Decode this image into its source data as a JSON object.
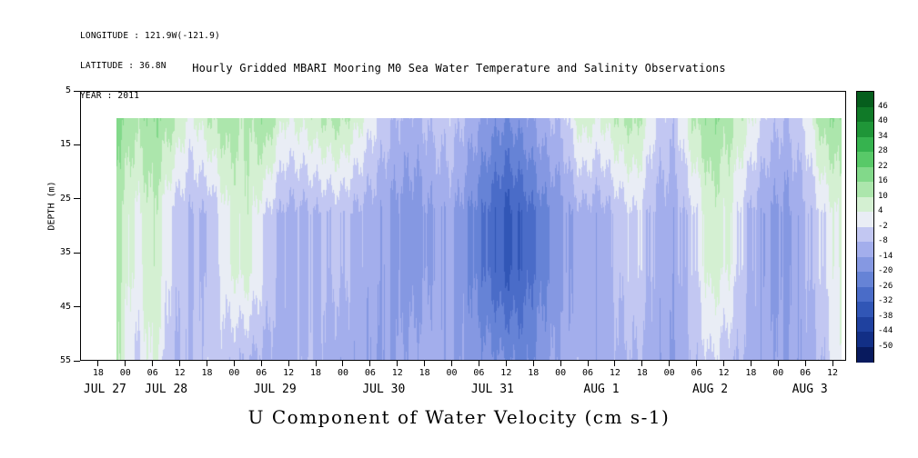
{
  "header": {
    "longitude": "LONGITUDE : 121.9W(-121.9)",
    "latitude": "LATITUDE : 36.8N",
    "year": "YEAR : 2011"
  },
  "title": "Hourly Gridded MBARI Mooring M0 Sea Water Temperature and Salinity Observations",
  "footer_label": "U Component of Water Velocity (cm s-1)",
  "y_axis": {
    "label": "DEPTH (m)",
    "ticks": [
      5,
      15,
      25,
      35,
      45,
      55
    ],
    "range": [
      5,
      55
    ]
  },
  "x_axis": {
    "range_hours": [
      14,
      183
    ],
    "tick_hours": [
      18,
      24,
      30,
      36,
      42,
      48,
      54,
      60,
      66,
      72,
      78,
      84,
      90,
      96,
      102,
      108,
      114,
      120,
      126,
      132,
      138,
      144,
      150,
      156,
      162,
      168,
      174,
      180
    ],
    "tick_labels": [
      "18",
      "00",
      "06",
      "12",
      "18",
      "00",
      "06",
      "12",
      "18",
      "00",
      "06",
      "12",
      "18",
      "00",
      "06",
      "12",
      "18",
      "00",
      "06",
      "12",
      "18",
      "00",
      "06",
      "12",
      "18",
      "00",
      "06",
      "12"
    ],
    "date_labels": [
      {
        "hour": 19.5,
        "label": "JUL 27"
      },
      {
        "hour": 33,
        "label": "JUL 28"
      },
      {
        "hour": 57,
        "label": "JUL 29"
      },
      {
        "hour": 81,
        "label": "JUL 30"
      },
      {
        "hour": 105,
        "label": "JUL 31"
      },
      {
        "hour": 129,
        "label": "AUG 1"
      },
      {
        "hour": 153,
        "label": "AUG 2"
      },
      {
        "hour": 175,
        "label": "AUG 3"
      }
    ]
  },
  "colorbar": {
    "labels": [
      "46",
      "40",
      "34",
      "28",
      "22",
      "16",
      "10",
      "4",
      "-2",
      "-8",
      "-14",
      "-20",
      "-26",
      "-32",
      "-38",
      "-44",
      "-50"
    ]
  },
  "chart_data": {
    "type": "heatmap",
    "title": "Hourly Gridded MBARI Mooring M0 Sea Water Temperature and Salinity Observations",
    "variable": "U Component of Water Velocity",
    "units": "cm s-1",
    "ylabel": "DEPTH (m)",
    "depth_range_m": [
      10,
      55
    ],
    "time_start": "JUL 27 22:00",
    "time_end": "AUG 3 14:00",
    "x_hours_span": [
      22,
      182
    ],
    "column_step_hours": 4,
    "levels": [
      -50,
      -44,
      -38,
      -32,
      -26,
      -20,
      -14,
      -8,
      -2,
      4,
      10,
      16,
      22,
      28,
      34,
      40,
      46
    ],
    "palette_low_to_high": [
      "#081a5e",
      "#122f86",
      "#1f419f",
      "#3156b6",
      "#4a6cc8",
      "#6683d6",
      "#8598e2",
      "#a3aeec",
      "#c2c7f2",
      "#e9edf5",
      "#d4f0d2",
      "#ace6ac",
      "#82d98a",
      "#58c968",
      "#36b34f",
      "#1f9638",
      "#107a28",
      "#065e1d"
    ],
    "grid": {
      "row_center_depths_m": [
        13,
        21,
        29,
        36,
        44,
        52
      ],
      "values": [
        [
          18,
          12,
          16,
          12,
          2,
          10,
          14,
          10,
          16,
          4,
          6,
          10,
          12,
          6,
          -2,
          -8,
          -10,
          -6,
          -4,
          -10,
          -16,
          -20,
          -16,
          -10,
          -6,
          8,
          4,
          10,
          12,
          -2,
          -6,
          10,
          16,
          12,
          6,
          -4,
          -8,
          -2,
          14,
          16
        ],
        [
          15,
          7,
          13,
          4,
          -3,
          1,
          9,
          9,
          7,
          -3,
          -2,
          1,
          3,
          -2,
          -7,
          -12,
          -14,
          -10,
          -8,
          -15,
          -22,
          -27,
          -23,
          -16,
          -11,
          -1,
          -4,
          2,
          5,
          -6,
          -9,
          3,
          12,
          8,
          -1,
          -9,
          -12,
          -6,
          6,
          11
        ],
        [
          12,
          2,
          10,
          -4,
          -8,
          -8,
          4,
          8,
          -2,
          -10,
          -10,
          -8,
          -6,
          -10,
          -12,
          -16,
          -18,
          -14,
          -12,
          -20,
          -28,
          -34,
          -30,
          -22,
          -16,
          -10,
          -12,
          -6,
          -2,
          -10,
          -12,
          -4,
          8,
          4,
          -8,
          -14,
          -16,
          -10,
          -2,
          6
        ],
        [
          12,
          2,
          10,
          -4,
          -8,
          -8,
          4,
          8,
          -2,
          -10,
          -10,
          -8,
          -6,
          -10,
          -12,
          -16,
          -18,
          -14,
          -12,
          -20,
          -28,
          -34,
          -30,
          -22,
          -16,
          -10,
          -12,
          -6,
          -2,
          -10,
          -12,
          -4,
          8,
          4,
          -8,
          -14,
          -16,
          -10,
          -2,
          6
        ],
        [
          11,
          -1,
          8,
          -6,
          -8,
          -6,
          -1,
          0,
          -6,
          -11,
          -9,
          -9,
          -9,
          -11,
          -13,
          -15,
          -15,
          -12,
          -13,
          -18,
          -23,
          -27,
          -26,
          -19,
          -14,
          -10,
          -12,
          -8,
          -5,
          -11,
          -13,
          -6,
          3,
          -1,
          -9,
          -13,
          -15,
          -11,
          -5,
          5
        ],
        [
          10,
          -4,
          6,
          -8,
          -8,
          -4,
          -6,
          -8,
          -10,
          -12,
          -8,
          -10,
          -12,
          -12,
          -14,
          -14,
          -12,
          -10,
          -14,
          -16,
          -18,
          -20,
          -22,
          -16,
          -12,
          -10,
          -12,
          -10,
          -8,
          -12,
          -14,
          -8,
          -2,
          -6,
          -10,
          -12,
          -14,
          -12,
          -8,
          4
        ]
      ]
    }
  }
}
